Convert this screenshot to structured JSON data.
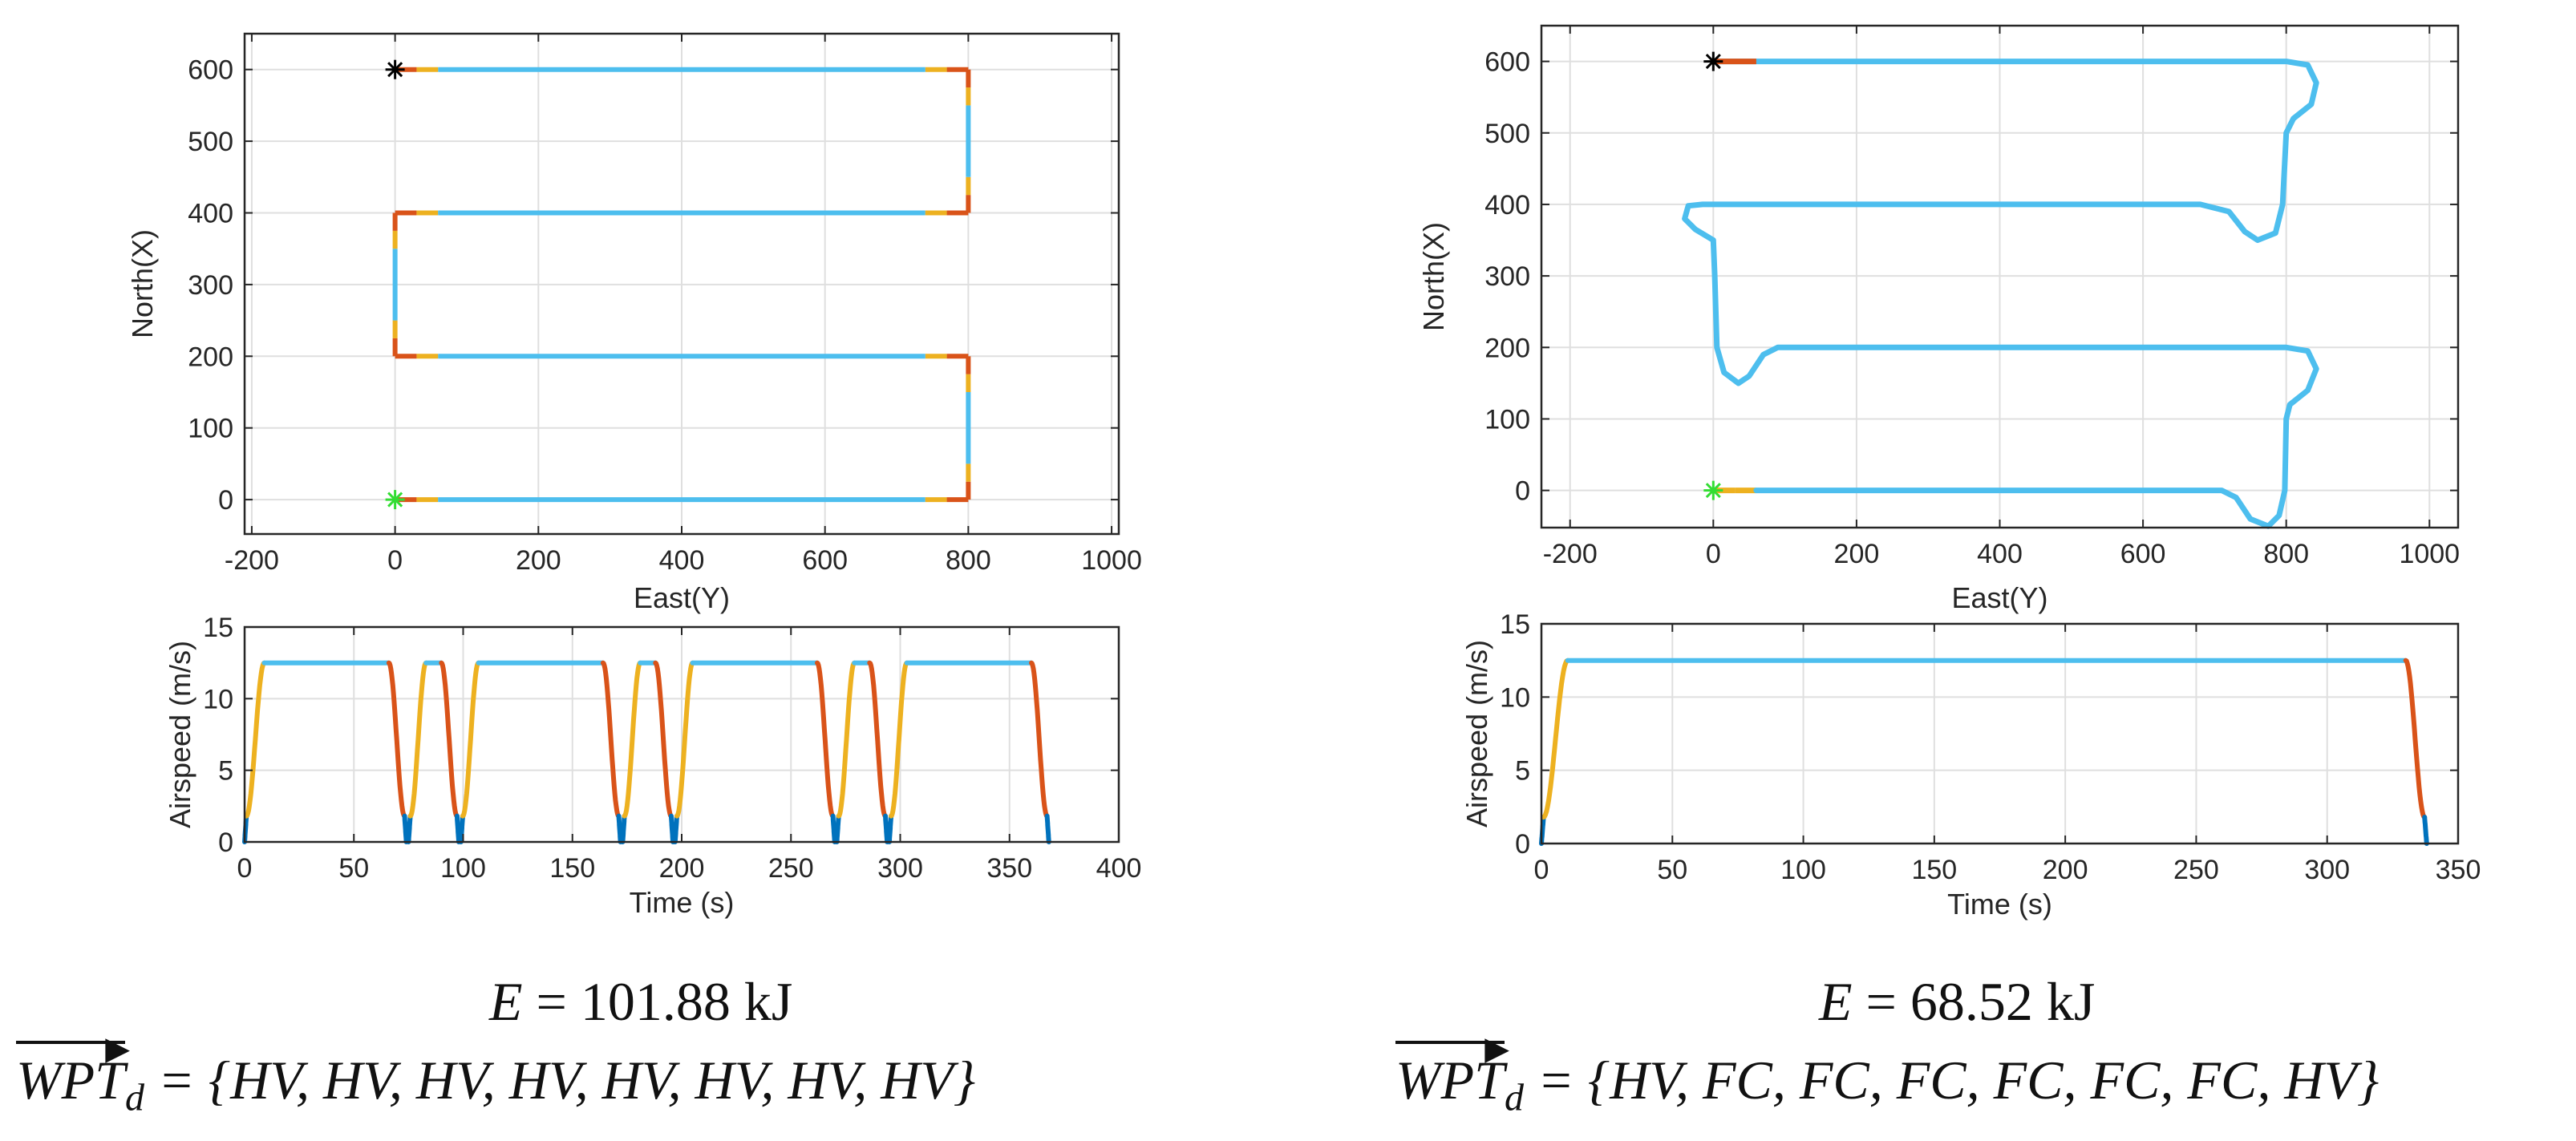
{
  "figure": {
    "left": {
      "energy_label": "E = 101.88 kJ",
      "energy_symbol": "E",
      "energy_value": "= 101.88 kJ",
      "wpt_symbol": "WPT",
      "wpt_subscript": "d",
      "wpt_value": "= {HV, HV, HV, HV, HV, HV, HV, HV}"
    },
    "right": {
      "energy_label": "E = 68.52 kJ",
      "energy_symbol": "E",
      "energy_value": "= 68.52 kJ",
      "wpt_symbol": "WPT",
      "wpt_subscript": "d",
      "wpt_value": "= {HV, FC, FC, FC, FC, FC, FC, HV}"
    }
  },
  "colors": {
    "blue": "#4DBEEE",
    "darkblue": "#0072BD",
    "orange": "#D95319",
    "yellow": "#EDB120",
    "start_marker": "#33dd33",
    "end_marker": "#000000"
  },
  "chart_data": [
    {
      "id": "path_left",
      "type": "line",
      "title": "",
      "xlabel": "East(Y)",
      "ylabel": "North(X)",
      "xlim": [
        -210,
        1010
      ],
      "ylim": [
        -48,
        650
      ],
      "xticks": [
        -200,
        0,
        200,
        400,
        600,
        800,
        1000
      ],
      "yticks": [
        0,
        100,
        200,
        300,
        400,
        500,
        600
      ],
      "grid": true,
      "series": [
        {
          "name": "path",
          "points": [
            [
              0,
              0
            ],
            [
              800,
              0
            ],
            [
              800,
              200
            ],
            [
              0,
              200
            ],
            [
              0,
              400
            ],
            [
              800,
              400
            ],
            [
              800,
              600
            ],
            [
              0,
              600
            ]
          ]
        }
      ],
      "markers": [
        {
          "name": "start",
          "x": 0,
          "y": 0,
          "symbol": "*",
          "color": "#33dd33"
        },
        {
          "name": "end",
          "x": 0,
          "y": 600,
          "symbol": "*",
          "color": "#000000"
        }
      ]
    },
    {
      "id": "speed_left",
      "type": "line",
      "title": "",
      "xlabel": "Time (s)",
      "ylabel": "Airspeed (m/s)",
      "xlim": [
        0,
        400
      ],
      "ylim": [
        0,
        15
      ],
      "xticks": [
        0,
        50,
        100,
        150,
        200,
        250,
        300,
        350,
        400
      ],
      "yticks": [
        0,
        5,
        10,
        15
      ],
      "grid": true,
      "cruise_speed": 12.5,
      "series": [
        {
          "name": "airspeed",
          "phases": [
            [
              0,
              9
            ],
            [
              66,
              74
            ],
            [
              75,
              83
            ],
            [
              90,
              98
            ],
            [
              99,
              107
            ],
            [
              164,
              172
            ],
            [
              173,
              181
            ],
            [
              188,
              196
            ],
            [
              197,
              205
            ],
            [
              262,
              270
            ],
            [
              271,
              279
            ],
            [
              286,
              294
            ],
            [
              295,
              303
            ],
            [
              360,
              368
            ]
          ]
        }
      ]
    },
    {
      "id": "path_right",
      "type": "line",
      "title": "",
      "xlabel": "East(Y)",
      "ylabel": "North(X)",
      "xlim": [
        -240,
        1040
      ],
      "ylim": [
        -52,
        650
      ],
      "xticks": [
        -200,
        0,
        200,
        400,
        600,
        800,
        1000
      ],
      "yticks": [
        0,
        100,
        200,
        300,
        400,
        500,
        600
      ],
      "grid": true,
      "series": [
        {
          "name": "path",
          "points": [
            [
              0,
              0
            ],
            [
              710,
              0
            ],
            [
              730,
              -10
            ],
            [
              750,
              -40
            ],
            [
              775,
              -50
            ],
            [
              790,
              -35
            ],
            [
              798,
              0
            ],
            [
              800,
              100
            ],
            [
              805,
              120
            ],
            [
              830,
              140
            ],
            [
              842,
              170
            ],
            [
              830,
              195
            ],
            [
              800,
              200
            ],
            [
              90,
              200
            ],
            [
              70,
              190
            ],
            [
              50,
              160
            ],
            [
              35,
              150
            ],
            [
              15,
              165
            ],
            [
              5,
              200
            ],
            [
              2,
              300
            ],
            [
              0,
              350
            ],
            [
              -25,
              365
            ],
            [
              -40,
              380
            ],
            [
              -35,
              398
            ],
            [
              -15,
              400
            ],
            [
              680,
              400
            ],
            [
              720,
              390
            ],
            [
              742,
              362
            ],
            [
              760,
              350
            ],
            [
              785,
              360
            ],
            [
              795,
              400
            ],
            [
              800,
              500
            ],
            [
              810,
              520
            ],
            [
              835,
              540
            ],
            [
              842,
              570
            ],
            [
              830,
              595
            ],
            [
              800,
              600
            ],
            [
              0,
              600
            ]
          ]
        }
      ],
      "markers": [
        {
          "name": "start",
          "x": 0,
          "y": 0,
          "symbol": "*",
          "color": "#33dd33"
        },
        {
          "name": "end",
          "x": 0,
          "y": 600,
          "symbol": "*",
          "color": "#000000"
        }
      ]
    },
    {
      "id": "speed_right",
      "type": "line",
      "title": "",
      "xlabel": "Time (s)",
      "ylabel": "Airspeed (m/s)",
      "xlim": [
        0,
        350
      ],
      "ylim": [
        0,
        15
      ],
      "xticks": [
        0,
        50,
        100,
        150,
        200,
        250,
        300,
        350
      ],
      "yticks": [
        0,
        5,
        10,
        15
      ],
      "grid": true,
      "cruise_speed": 12.5,
      "series": [
        {
          "name": "airspeed",
          "phases": [
            [
              0,
              10
            ],
            [
              330,
              338
            ]
          ]
        }
      ]
    }
  ]
}
